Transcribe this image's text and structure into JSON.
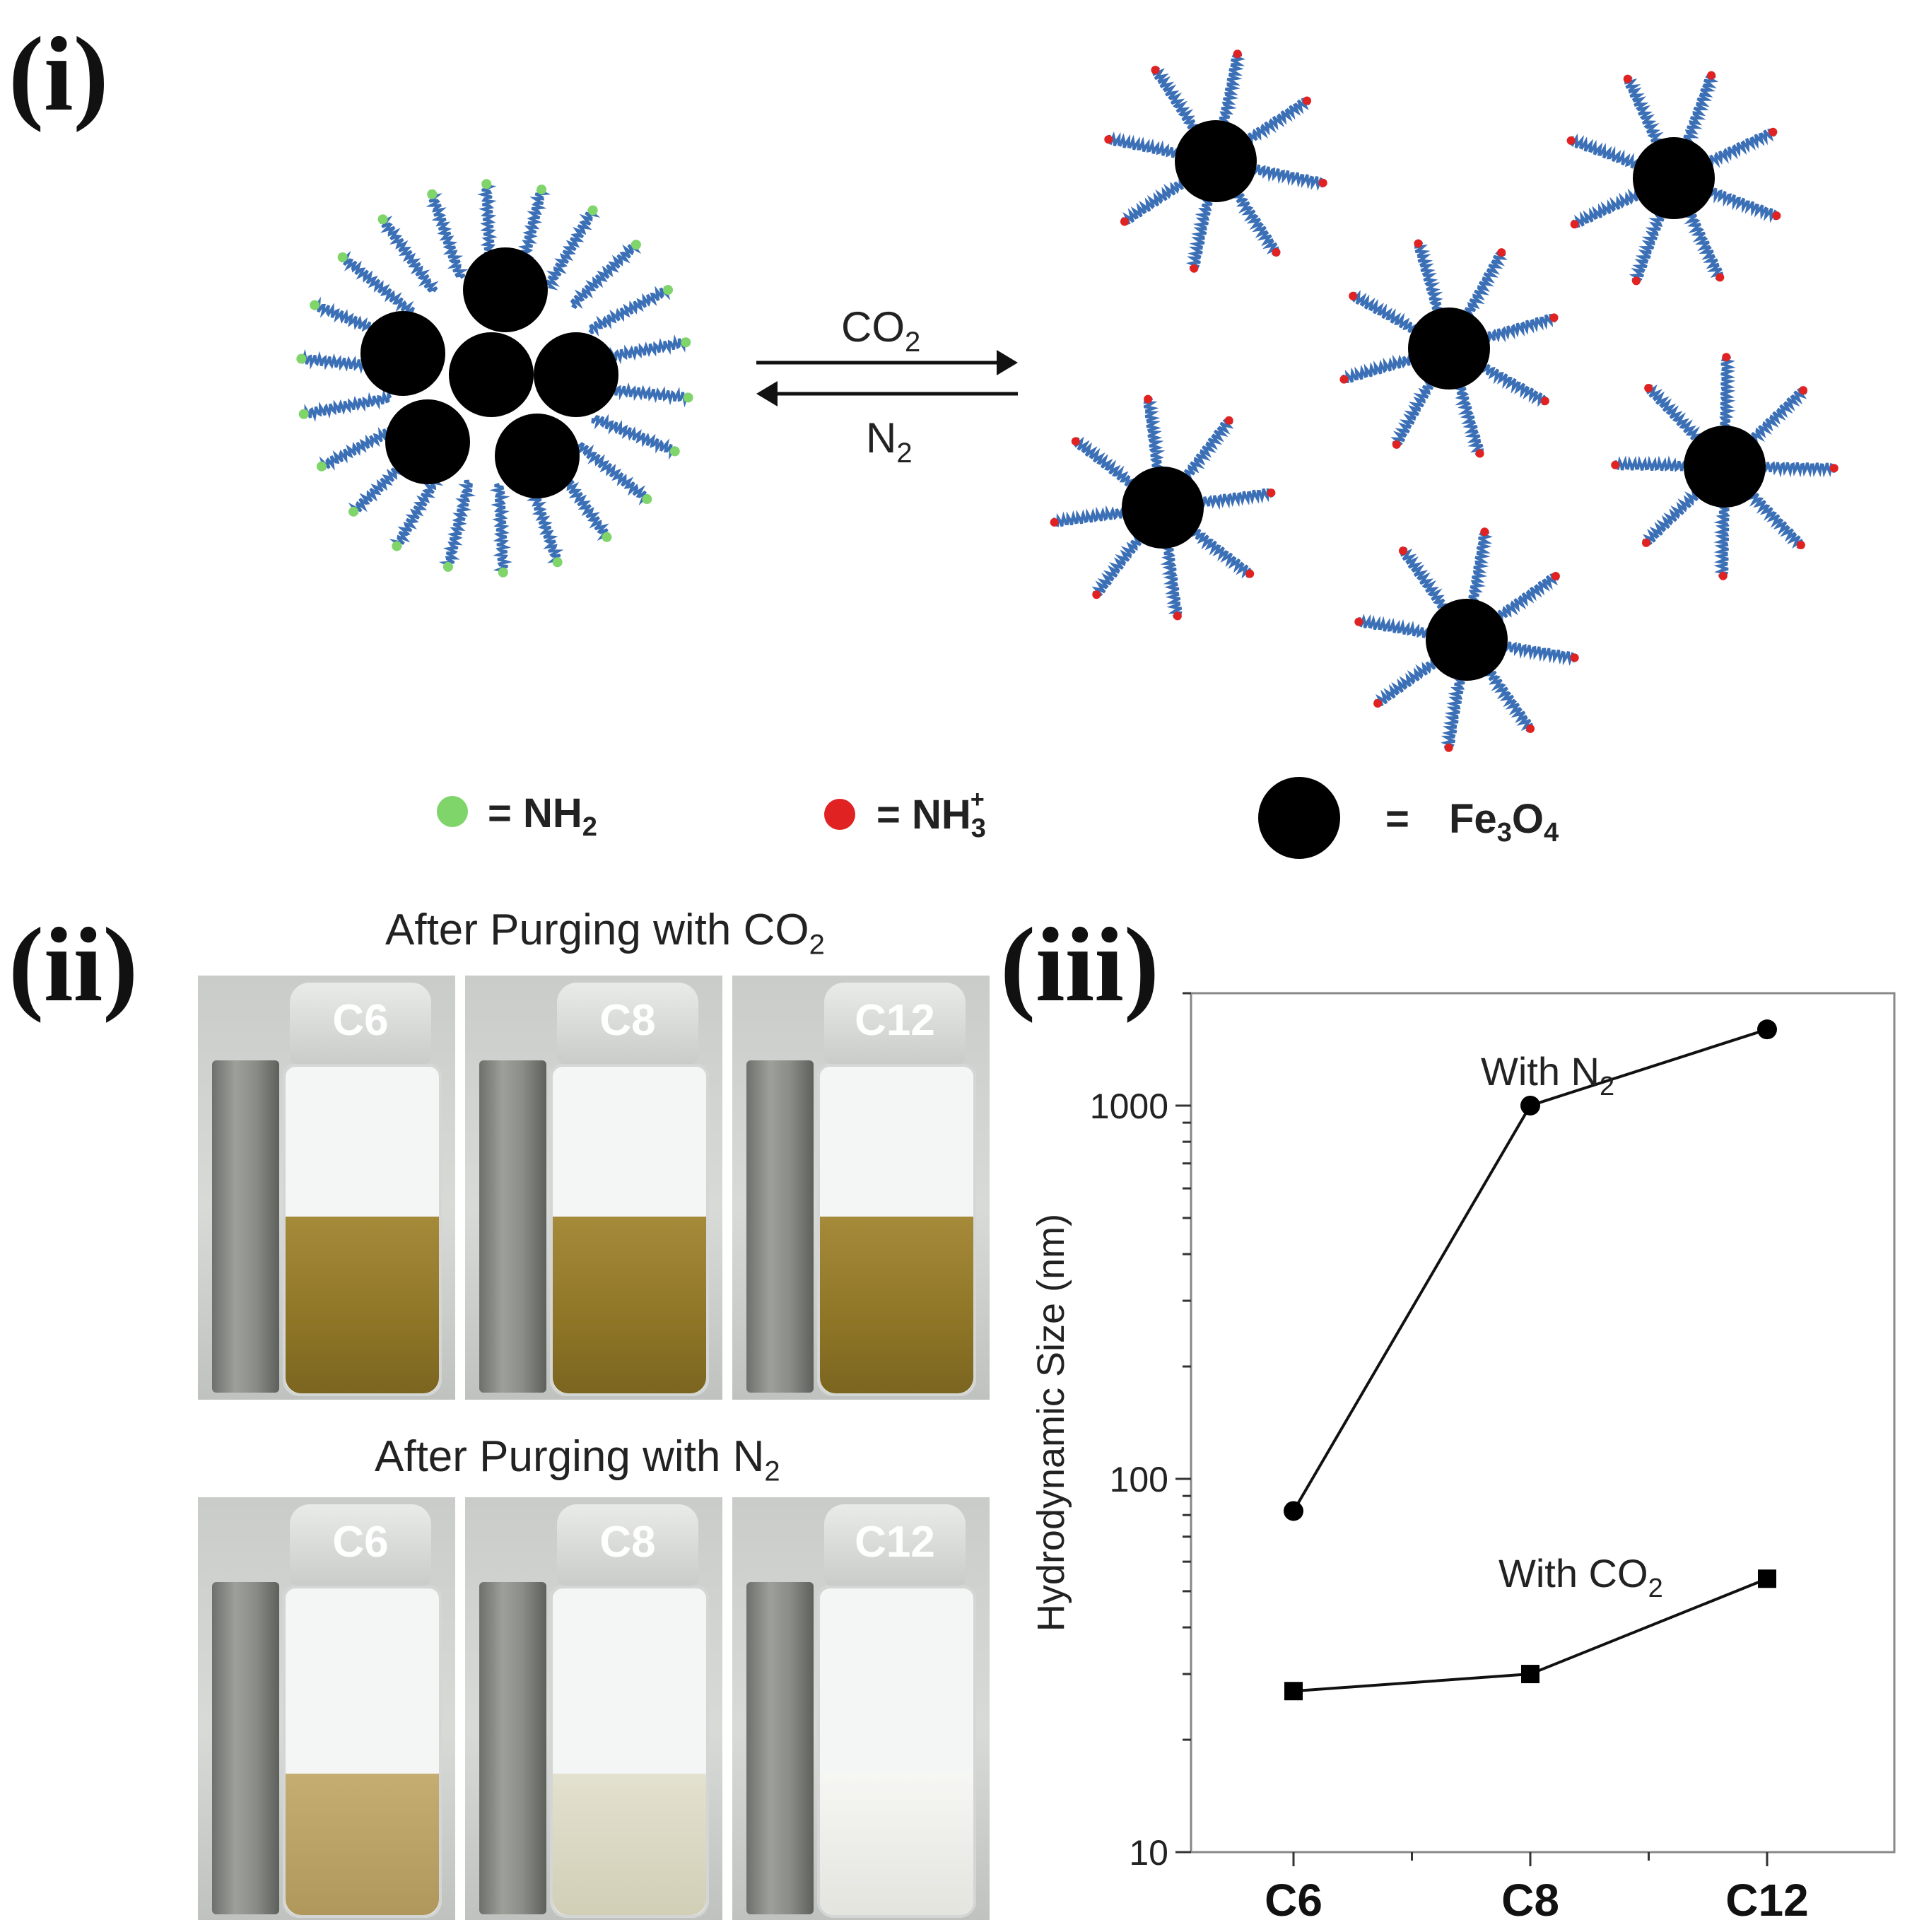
{
  "panels": {
    "i": "(i)",
    "ii": "(ii)",
    "iii": "(iii)"
  },
  "scheme": {
    "arrow_top_label_main": "CO",
    "arrow_top_label_sub": "2",
    "arrow_bottom_label_main": "N",
    "arrow_bottom_label_sub": "2",
    "legend": {
      "nh2": "= NH",
      "nh2_sub": "2",
      "nh3": "= NH",
      "nh3_sub": "3",
      "nh3_sup": "+",
      "fe3o4_eq": "=",
      "fe3o4": "Fe",
      "fe3o4_sub1": "3",
      "fe3o4_mid": "O",
      "fe3o4_sub2": "4"
    },
    "colors": {
      "chain": "#3b6fb6",
      "nh2": "#7fd46a",
      "nh3": "#e02222",
      "particle": "#000000"
    }
  },
  "photos": {
    "title_co2": "After Purging with CO",
    "title_co2_sub": "2",
    "title_n2": "After Purging with N",
    "title_n2_sub": "2",
    "vials": [
      "C6",
      "C8",
      "C12"
    ]
  },
  "chart_data": {
    "type": "line",
    "categories": [
      "C6",
      "C8",
      "C12"
    ],
    "yscale": "log",
    "ylim": [
      10,
      2000
    ],
    "yticks": [
      10,
      100,
      1000
    ],
    "ytick_labels": [
      "10",
      "100",
      "1000"
    ],
    "ylabel": "Hydrodynamic Size (nm)",
    "series": [
      {
        "name": "With N2",
        "label_main": "With N",
        "label_sub": "2",
        "marker": "circle",
        "values": [
          82,
          1000,
          1600
        ]
      },
      {
        "name": "With CO2",
        "label_main": "With CO",
        "label_sub": "2",
        "marker": "square",
        "values": [
          27,
          30,
          54
        ]
      }
    ]
  }
}
